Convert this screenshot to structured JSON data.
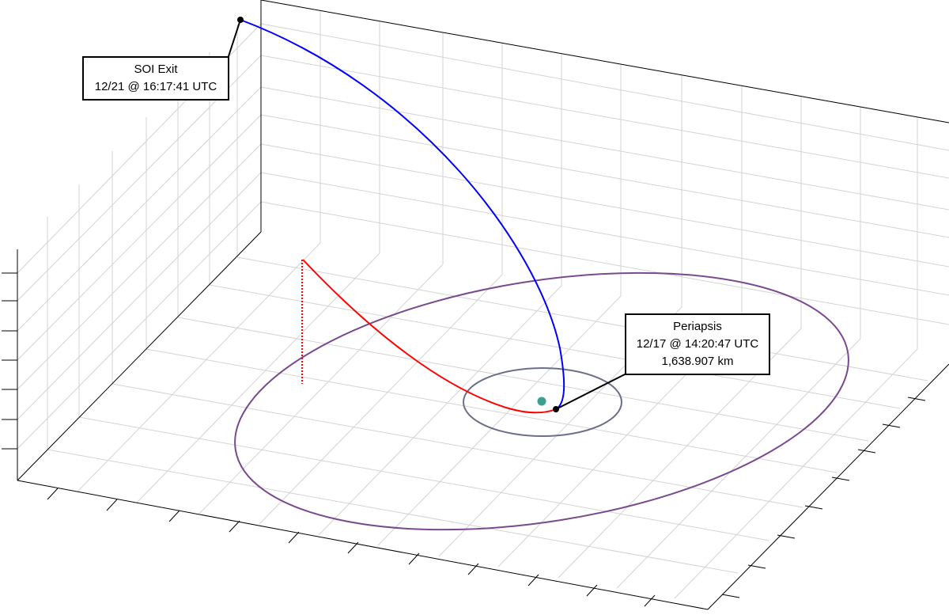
{
  "figure": {
    "background": "#ffffff",
    "grid_color": "#d3d3d3",
    "axis_color": "#000000"
  },
  "annotations": {
    "soi_exit": {
      "title": "SOI Exit",
      "time": "12/21 @ 16:17:41 UTC"
    },
    "periapsis": {
      "title": "Periapsis",
      "time": "12/17 @ 14:20:47 UTC",
      "altitude": "1,638.907 km"
    }
  },
  "orbits": {
    "outbound_trajectory_color": "#0000ff",
    "inbound_trajectory_color": "#ff0000",
    "outer_orbit_color": "#7a4a8f",
    "inner_orbit_color": "#6b7088",
    "central_body_color": "#3aa191",
    "marker_color": "#000000"
  }
}
